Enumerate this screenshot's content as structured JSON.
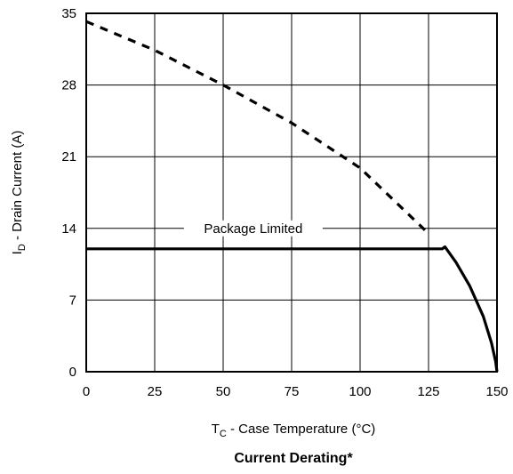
{
  "chart_data": {
    "type": "line",
    "title": "Current Derating*",
    "xlabel": {
      "main": "T",
      "sub": "C",
      "rest": " - Case Temperature (°C)"
    },
    "ylabel": {
      "main": "I",
      "sub": "D",
      "rest": " - Drain Current (A)"
    },
    "xlim": [
      0,
      150
    ],
    "ylim": [
      0,
      35
    ],
    "xticks": [
      0,
      25,
      50,
      75,
      100,
      125,
      150
    ],
    "yticks": [
      0,
      7,
      14,
      21,
      28,
      35
    ],
    "grid": true,
    "annotation": "Package Limited",
    "series": [
      {
        "style": "dashed",
        "x": [
          0,
          25,
          50,
          75,
          100,
          125
        ],
        "y": [
          34.2,
          31.4,
          28.0,
          24.3,
          19.9,
          13.5
        ]
      },
      {
        "style": "solid",
        "x": [
          0,
          130,
          131,
          135,
          140,
          145,
          148,
          149.5,
          150
        ],
        "y": [
          12.0,
          12.0,
          12.2,
          10.7,
          8.4,
          5.4,
          2.8,
          1.0,
          0
        ]
      }
    ]
  }
}
